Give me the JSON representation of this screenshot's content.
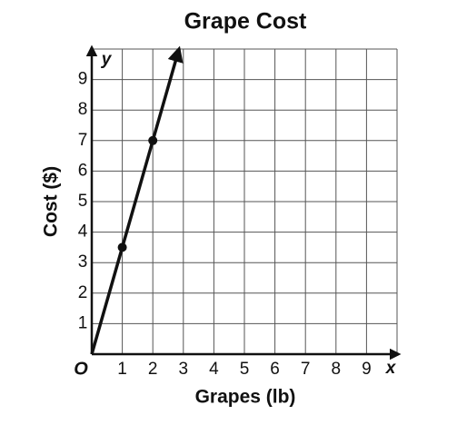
{
  "chart_data": {
    "type": "line",
    "title": "Grape Cost",
    "xlabel": "Grapes (lb)",
    "ylabel": "Cost ($)",
    "x_axis_letter": "x",
    "y_axis_letter": "y",
    "origin_label": "O",
    "series": [
      {
        "x": [
          0,
          1,
          2
        ],
        "values": [
          0,
          3.5,
          7
        ],
        "markers": [
          false,
          true,
          true
        ],
        "color": "#111111"
      }
    ],
    "xlim": [
      0,
      10
    ],
    "ylim": [
      0,
      10
    ],
    "xticks": [
      1,
      2,
      3,
      4,
      5,
      6,
      7,
      8,
      9
    ],
    "yticks": [
      1,
      2,
      3,
      4,
      5,
      6,
      7,
      8,
      9
    ],
    "grid": true,
    "line_arrow": true
  }
}
